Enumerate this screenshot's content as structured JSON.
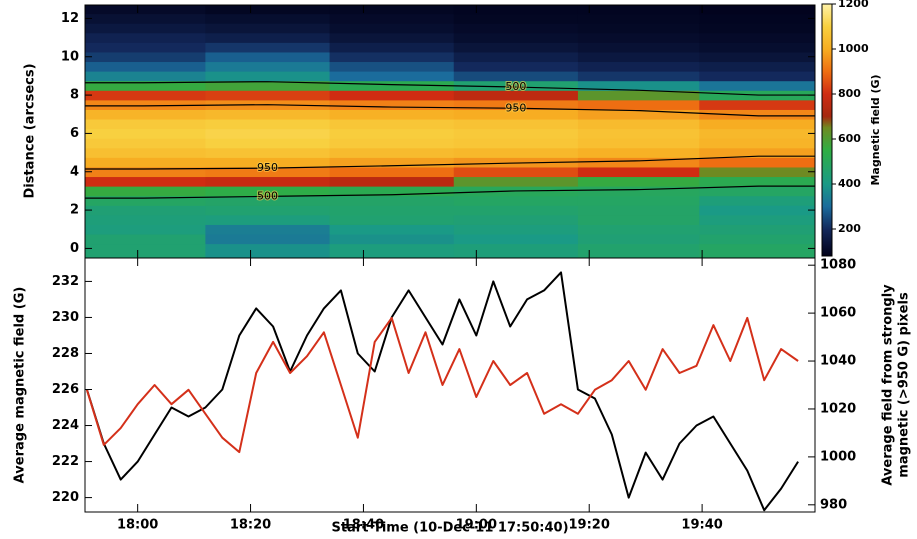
{
  "chart_data": [
    {
      "type": "heatmap",
      "ylabel": "Distance (arcsecs)",
      "colorbar_label": "Magnetic field (G)",
      "xlim": [
        1070.67,
        1200
      ],
      "xticks": [
        1080,
        1100,
        1120,
        1140,
        1160,
        1180
      ],
      "ylim": [
        -0.5,
        12.7
      ],
      "yticks": [
        0,
        2,
        4,
        6,
        8,
        10,
        12
      ],
      "x": [
        1081,
        1103,
        1125,
        1147,
        1169,
        1190
      ],
      "y": [
        0,
        0.5,
        1,
        1.5,
        2,
        2.5,
        3,
        3.5,
        4,
        4.5,
        5,
        5.5,
        6,
        6.5,
        7,
        7.5,
        8,
        8.5,
        9,
        9.5,
        10,
        10.5,
        11,
        11.5,
        12,
        12.5
      ],
      "z": [
        [
          450,
          380,
          420,
          430,
          460,
          480
        ],
        [
          450,
          330,
          380,
          400,
          440,
          460
        ],
        [
          420,
          340,
          400,
          420,
          450,
          440
        ],
        [
          430,
          420,
          450,
          440,
          470,
          420
        ],
        [
          440,
          450,
          460,
          460,
          470,
          400
        ],
        [
          480,
          470,
          470,
          480,
          480,
          430
        ],
        [
          560,
          540,
          520,
          500,
          490,
          480
        ],
        [
          800,
          780,
          750,
          620,
          560,
          520
        ],
        [
          930,
          920,
          900,
          850,
          800,
          650
        ],
        [
          1000,
          1000,
          980,
          960,
          940,
          900
        ],
        [
          1050,
          1060,
          1040,
          1030,
          1010,
          980
        ],
        [
          1080,
          1100,
          1080,
          1070,
          1050,
          1020
        ],
        [
          1100,
          1110,
          1090,
          1080,
          1060,
          1030
        ],
        [
          1080,
          1090,
          1070,
          1060,
          1040,
          1000
        ],
        [
          1020,
          1030,
          1010,
          1000,
          980,
          940
        ],
        [
          940,
          950,
          930,
          920,
          900,
          820
        ],
        [
          820,
          830,
          800,
          760,
          620,
          500
        ],
        [
          560,
          580,
          520,
          450,
          380,
          320
        ],
        [
          350,
          380,
          300,
          250,
          220,
          200
        ],
        [
          280,
          330,
          260,
          200,
          180,
          170
        ],
        [
          230,
          280,
          210,
          170,
          150,
          140
        ],
        [
          200,
          220,
          170,
          140,
          130,
          120
        ],
        [
          180,
          170,
          140,
          120,
          115,
          110
        ],
        [
          150,
          140,
          120,
          110,
          105,
          100
        ],
        [
          130,
          120,
          110,
          100,
          100,
          95
        ],
        [
          110,
          100,
          100,
          95,
          95,
          90
        ]
      ],
      "zlim": [
        80,
        1200
      ],
      "zticks": [
        200,
        400,
        600,
        800,
        1000,
        1200
      ],
      "colorscale": [
        [
          80,
          "#000018"
        ],
        [
          200,
          "#13295c"
        ],
        [
          300,
          "#1b6c9c"
        ],
        [
          400,
          "#1a9a86"
        ],
        [
          550,
          "#2fae44"
        ],
        [
          650,
          "#6f8a22"
        ],
        [
          700,
          "#a52810"
        ],
        [
          800,
          "#cf2c12"
        ],
        [
          900,
          "#ee6e12"
        ],
        [
          1000,
          "#f7ad22"
        ],
        [
          1100,
          "#f8d040"
        ],
        [
          1200,
          "#fff2a8"
        ]
      ],
      "contours": {
        "levels": [
          500,
          950
        ],
        "color": "#000000"
      }
    },
    {
      "type": "line",
      "xlabel": "Start Time (10-Dec-11 17:50:40)",
      "ylabel": "Average magnetic field (G)",
      "y2label": [
        "Average field from strongly",
        "magnetic (>950 G) pixels"
      ],
      "xlim": [
        1070.67,
        1200
      ],
      "xticks": [
        {
          "value": 1080,
          "label": "18:00"
        },
        {
          "value": 1100,
          "label": "18:20"
        },
        {
          "value": 1120,
          "label": "18:40"
        },
        {
          "value": 1140,
          "label": "19:00"
        },
        {
          "value": 1160,
          "label": "19:20"
        },
        {
          "value": 1180,
          "label": "19:40"
        }
      ],
      "ylim": [
        219.2,
        233.3
      ],
      "yticks": [
        220,
        222,
        224,
        226,
        228,
        230,
        232
      ],
      "y2lim": [
        977,
        1083
      ],
      "y2ticks": [
        980,
        1000,
        1020,
        1040,
        1060,
        1080
      ],
      "x": [
        1071,
        1074,
        1077,
        1080,
        1083,
        1086,
        1089,
        1092,
        1095,
        1098,
        1101,
        1104,
        1107,
        1110,
        1113,
        1116,
        1119,
        1122,
        1125,
        1128,
        1131,
        1134,
        1137,
        1140,
        1143,
        1146,
        1149,
        1152,
        1155,
        1158,
        1161,
        1164,
        1167,
        1170,
        1173,
        1176,
        1179,
        1182,
        1185,
        1188,
        1191,
        1194,
        1197
      ],
      "series": [
        {
          "color": "#000000",
          "values": [
            226,
            223,
            221,
            222,
            223.5,
            225,
            224.5,
            225,
            226,
            229,
            230.5,
            229.5,
            227,
            229,
            230.5,
            231.5,
            228,
            227,
            230,
            231.5,
            230,
            228.5,
            231,
            229,
            232,
            229.5,
            231,
            231.5,
            232.5,
            226,
            225.5,
            223.5,
            220,
            222.5,
            221,
            223,
            224,
            224.5,
            223,
            221.5,
            219.3,
            220.5,
            222
          ]
        },
        {
          "color": "#d4301a",
          "axis": "y2",
          "values": [
            1028,
            1005,
            1012,
            1022,
            1030,
            1022,
            1028,
            1018,
            1008,
            1002,
            1035,
            1048,
            1035,
            1042,
            1052,
            1030,
            1008,
            1048,
            1058,
            1035,
            1052,
            1030,
            1045,
            1025,
            1040,
            1030,
            1035,
            1018,
            1022,
            1018,
            1028,
            1032,
            1040,
            1028,
            1045,
            1035,
            1038,
            1055,
            1040,
            1058,
            1032,
            1045,
            1040
          ]
        }
      ]
    }
  ]
}
